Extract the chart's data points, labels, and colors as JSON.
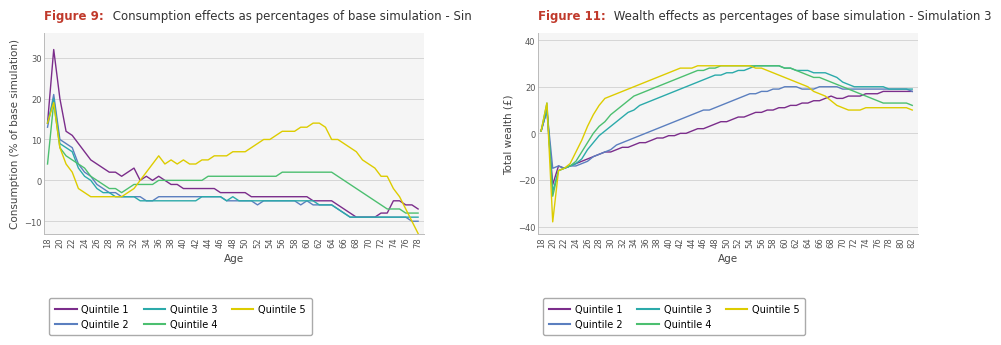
{
  "fig1_title_red": "Figure 9:",
  "fig1_title_black": " Consumption effects as percentages of base simulation - Sin",
  "fig2_title_red": "Figure 11:",
  "fig2_title_black": " Wealth effects as percentages of base simulation - Simulation 3",
  "fig1_ylabel": "Consumption (% of base simulation)",
  "fig2_ylabel": "Total wealth (£)",
  "xlabel": "Age",
  "fig1_ylim": [
    -13,
    36
  ],
  "fig1_yticks": [
    -10,
    0,
    10,
    20,
    30
  ],
  "fig2_ylim": [
    -43,
    43
  ],
  "fig2_yticks": [
    -40,
    -20,
    0,
    20,
    40
  ],
  "ages1": [
    18,
    19,
    20,
    21,
    22,
    23,
    24,
    25,
    26,
    27,
    28,
    29,
    30,
    31,
    32,
    33,
    34,
    35,
    36,
    37,
    38,
    39,
    40,
    41,
    42,
    43,
    44,
    45,
    46,
    47,
    48,
    49,
    50,
    51,
    52,
    53,
    54,
    55,
    56,
    57,
    58,
    59,
    60,
    61,
    62,
    63,
    64,
    65,
    66,
    67,
    68,
    69,
    70,
    71,
    72,
    73,
    74,
    75,
    76,
    77,
    78
  ],
  "ages2": [
    18,
    19,
    20,
    21,
    22,
    23,
    24,
    25,
    26,
    27,
    28,
    29,
    30,
    31,
    32,
    33,
    34,
    35,
    36,
    37,
    38,
    39,
    40,
    41,
    42,
    43,
    44,
    45,
    46,
    47,
    48,
    49,
    50,
    51,
    52,
    53,
    54,
    55,
    56,
    57,
    58,
    59,
    60,
    61,
    62,
    63,
    64,
    65,
    66,
    67,
    68,
    69,
    70,
    71,
    72,
    73,
    74,
    75,
    76,
    77,
    78,
    79,
    80,
    81,
    82
  ],
  "colors": {
    "q1": "#7B2D8B",
    "q2": "#5B7FBF",
    "q3": "#2BAAAA",
    "q4": "#4CBF70",
    "q5": "#DDCC00"
  },
  "fig1_q1": [
    14,
    32,
    20,
    12,
    11,
    9,
    7,
    5,
    4,
    3,
    2,
    2,
    1,
    2,
    3,
    0,
    1,
    0,
    1,
    0,
    -1,
    -1,
    -2,
    -2,
    -2,
    -2,
    -2,
    -2,
    -3,
    -3,
    -3,
    -3,
    -3,
    -4,
    -4,
    -4,
    -4,
    -4,
    -4,
    -4,
    -4,
    -4,
    -4,
    -5,
    -5,
    -5,
    -5,
    -6,
    -7,
    -8,
    -9,
    -9,
    -9,
    -9,
    -8,
    -8,
    -5,
    -5,
    -6,
    -6,
    -7
  ],
  "fig1_q2": [
    13,
    21,
    10,
    9,
    8,
    4,
    2,
    1,
    -1,
    -2,
    -3,
    -3,
    -4,
    -4,
    -4,
    -4,
    -5,
    -5,
    -4,
    -4,
    -4,
    -4,
    -4,
    -4,
    -4,
    -4,
    -4,
    -4,
    -4,
    -5,
    -5,
    -5,
    -5,
    -5,
    -6,
    -5,
    -5,
    -5,
    -5,
    -5,
    -5,
    -6,
    -5,
    -6,
    -6,
    -6,
    -6,
    -7,
    -8,
    -9,
    -9,
    -9,
    -9,
    -9,
    -9,
    -9,
    -9,
    -9,
    -9,
    -10,
    -10
  ],
  "fig1_q3": [
    14,
    20,
    9,
    8,
    7,
    3,
    1,
    0,
    -2,
    -3,
    -3,
    -4,
    -4,
    -4,
    -4,
    -5,
    -5,
    -5,
    -5,
    -5,
    -5,
    -5,
    -5,
    -5,
    -5,
    -4,
    -4,
    -4,
    -4,
    -5,
    -4,
    -5,
    -5,
    -5,
    -5,
    -5,
    -5,
    -5,
    -5,
    -5,
    -5,
    -5,
    -5,
    -5,
    -6,
    -6,
    -6,
    -7,
    -8,
    -9,
    -9,
    -9,
    -9,
    -9,
    -9,
    -9,
    -9,
    -9,
    -9,
    -9,
    -9
  ],
  "fig1_q4": [
    4,
    19,
    8,
    6,
    5,
    4,
    3,
    1,
    0,
    -1,
    -2,
    -2,
    -3,
    -2,
    -1,
    -1,
    -1,
    -1,
    0,
    0,
    0,
    0,
    0,
    0,
    0,
    0,
    1,
    1,
    1,
    1,
    1,
    1,
    1,
    1,
    1,
    1,
    1,
    1,
    2,
    2,
    2,
    2,
    2,
    2,
    2,
    2,
    2,
    1,
    0,
    -1,
    -2,
    -3,
    -4,
    -5,
    -6,
    -7,
    -7,
    -7,
    -8,
    -8,
    -8
  ],
  "fig1_q5": [
    14,
    19,
    8,
    4,
    2,
    -2,
    -3,
    -4,
    -4,
    -4,
    -4,
    -4,
    -4,
    -3,
    -2,
    0,
    2,
    4,
    6,
    4,
    5,
    4,
    5,
    4,
    4,
    5,
    5,
    6,
    6,
    6,
    7,
    7,
    7,
    8,
    9,
    10,
    10,
    11,
    12,
    12,
    12,
    13,
    13,
    14,
    14,
    13,
    10,
    10,
    9,
    8,
    7,
    5,
    4,
    3,
    1,
    1,
    -2,
    -4,
    -7,
    -10,
    -13
  ],
  "fig2_q1": [
    1,
    10,
    -22,
    -14,
    -15,
    -14,
    -13,
    -12,
    -11,
    -10,
    -9,
    -8,
    -8,
    -7,
    -6,
    -6,
    -5,
    -4,
    -4,
    -3,
    -2,
    -2,
    -1,
    -1,
    0,
    0,
    1,
    2,
    2,
    3,
    4,
    5,
    5,
    6,
    7,
    7,
    8,
    9,
    9,
    10,
    10,
    11,
    11,
    12,
    12,
    13,
    13,
    14,
    14,
    15,
    16,
    15,
    15,
    16,
    16,
    16,
    17,
    17,
    17,
    18,
    18,
    18,
    18,
    18,
    18
  ],
  "fig2_q2": [
    1,
    10,
    -15,
    -14,
    -15,
    -14,
    -14,
    -13,
    -12,
    -10,
    -9,
    -8,
    -7,
    -5,
    -4,
    -3,
    -2,
    -1,
    0,
    1,
    2,
    3,
    4,
    5,
    6,
    7,
    8,
    9,
    10,
    10,
    11,
    12,
    13,
    14,
    15,
    16,
    17,
    17,
    18,
    18,
    19,
    19,
    20,
    20,
    20,
    19,
    19,
    19,
    20,
    20,
    20,
    20,
    19,
    19,
    19,
    19,
    19,
    19,
    19,
    19,
    19,
    19,
    19,
    19,
    18
  ],
  "fig2_q3": [
    1,
    10,
    -25,
    -16,
    -15,
    -14,
    -13,
    -11,
    -7,
    -4,
    -1,
    1,
    3,
    5,
    7,
    9,
    10,
    12,
    13,
    14,
    15,
    16,
    17,
    18,
    19,
    20,
    21,
    22,
    23,
    24,
    25,
    25,
    26,
    26,
    27,
    27,
    28,
    29,
    29,
    29,
    29,
    29,
    28,
    28,
    27,
    27,
    27,
    26,
    26,
    26,
    25,
    24,
    22,
    21,
    20,
    20,
    20,
    20,
    20,
    20,
    19,
    19,
    19,
    19,
    19
  ],
  "fig2_q4": [
    1,
    13,
    -27,
    -16,
    -15,
    -14,
    -12,
    -8,
    -4,
    0,
    3,
    5,
    8,
    10,
    12,
    14,
    16,
    17,
    18,
    19,
    20,
    21,
    22,
    23,
    24,
    25,
    26,
    27,
    27,
    28,
    28,
    29,
    29,
    29,
    29,
    29,
    29,
    29,
    29,
    29,
    29,
    29,
    28,
    28,
    27,
    26,
    25,
    24,
    24,
    23,
    22,
    21,
    20,
    19,
    18,
    17,
    16,
    15,
    14,
    13,
    13,
    13,
    13,
    13,
    12
  ],
  "fig2_q5": [
    1,
    13,
    -38,
    -16,
    -15,
    -13,
    -8,
    -3,
    3,
    8,
    12,
    15,
    16,
    17,
    18,
    19,
    20,
    21,
    22,
    23,
    24,
    25,
    26,
    27,
    28,
    28,
    28,
    29,
    29,
    29,
    29,
    29,
    29,
    29,
    29,
    29,
    29,
    28,
    28,
    27,
    26,
    25,
    24,
    23,
    22,
    21,
    20,
    18,
    17,
    16,
    14,
    12,
    11,
    10,
    10,
    10,
    11,
    11,
    11,
    11,
    11,
    11,
    11,
    11,
    10
  ],
  "legend_labels": [
    "Quintile 1",
    "Quintile 2",
    "Quintile 3",
    "Quintile 4",
    "Quintile 5"
  ],
  "bg_color": "#ffffff",
  "plot_bg_color": "#f5f5f5",
  "grid_color": "#d0d0d0",
  "title_red_color": "#c0392b",
  "title_black_color": "#333333",
  "title_fontsize": 8.5,
  "axis_label_fontsize": 7.5,
  "tick_fontsize": 6.0,
  "legend_fontsize": 7.0,
  "linewidth": 1.0
}
